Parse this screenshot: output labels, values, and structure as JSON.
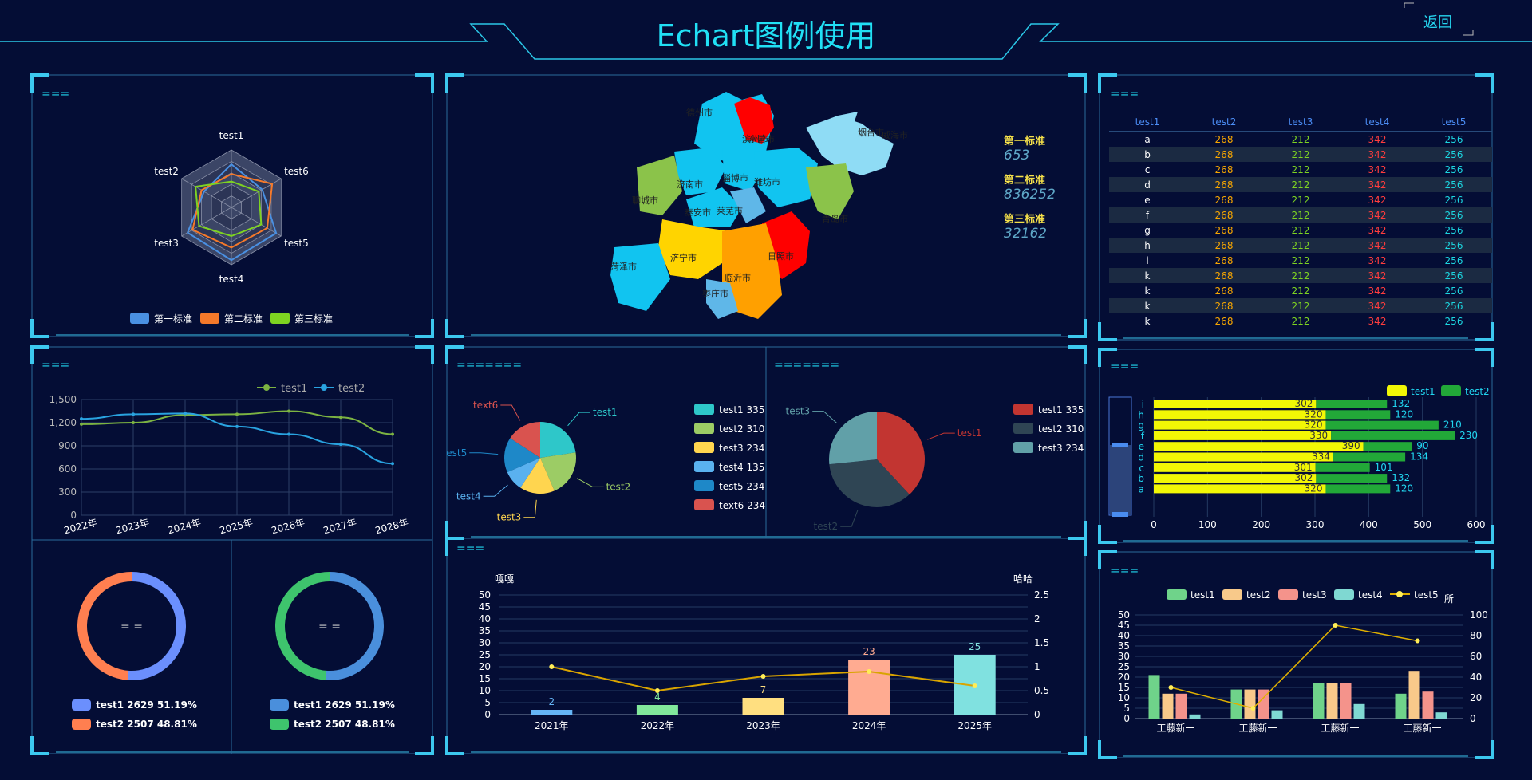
{
  "header": {
    "title": "Echart图例使用",
    "back_label": "返回"
  },
  "panel_titles": {
    "radar": "===",
    "line": "===",
    "map": "",
    "pie": "=======",
    "bar": "===",
    "table": "===",
    "hbar": "===",
    "group": "==="
  },
  "radar": {
    "indicators": [
      "test1",
      "test6",
      "test5",
      "test4",
      "test3",
      "test2"
    ],
    "series": [
      {
        "name": "第一标准",
        "color": "#4a90e2",
        "values": [
          0.75,
          0.62,
          0.9,
          0.92,
          0.88,
          0.55
        ]
      },
      {
        "name": "第二标准",
        "color": "#f5792a",
        "values": [
          0.58,
          0.82,
          0.72,
          0.7,
          0.78,
          0.6
        ]
      },
      {
        "name": "第三标准",
        "color": "#7ed321",
        "values": [
          0.45,
          0.55,
          0.6,
          0.5,
          0.65,
          0.72
        ]
      }
    ]
  },
  "line_chart": {
    "type": "line",
    "categories": [
      "2022年",
      "2023年",
      "2024年",
      "2025年",
      "2026年",
      "2027年",
      "2028年"
    ],
    "ylim": [
      0,
      1500
    ],
    "yticks": [
      "0",
      "300",
      "600",
      "900",
      "1,200",
      "1,500"
    ],
    "series": [
      {
        "name": "test1",
        "color": "#7cb342",
        "values": [
          1180,
          1200,
          1300,
          1310,
          1350,
          1270,
          1050
        ]
      },
      {
        "name": "test2",
        "color": "#29a3e0",
        "values": [
          1250,
          1310,
          1320,
          1150,
          1050,
          920,
          670
        ]
      }
    ]
  },
  "donuts": [
    {
      "center": "= =",
      "items": [
        {
          "name": "test1",
          "value": "2629",
          "pct": "51.19%",
          "color": "#6b8ffd"
        },
        {
          "name": "test2",
          "value": "2507",
          "pct": "48.81%",
          "color": "#ff7f50"
        }
      ]
    },
    {
      "center": "= =",
      "items": [
        {
          "name": "test1",
          "value": "2629",
          "pct": "51.19%",
          "color": "#4a8fdc"
        },
        {
          "name": "test2",
          "value": "2507",
          "pct": "48.81%",
          "color": "#3ec46d"
        }
      ]
    }
  ],
  "map": {
    "cities": [
      "滨州市",
      "东营市",
      "烟台市",
      "威海市",
      "聊城市",
      "济南市",
      "淄博市",
      "潍坊市",
      "青岛市",
      "泰安市",
      "莱芜市",
      "日照市",
      "济宁市",
      "临沂市",
      "枣庄市",
      "菏泽市",
      "德州市"
    ],
    "legend": [
      {
        "label": "第一标准",
        "value": "653"
      },
      {
        "label": "第二标准",
        "value": "836252"
      },
      {
        "label": "第三标准",
        "value": "32162"
      }
    ]
  },
  "pie1": {
    "type": "pie",
    "slices": [
      {
        "name": "test1",
        "value": 335,
        "color": "#2ec7c9"
      },
      {
        "name": "test2",
        "value": 310,
        "color": "#9ccc65"
      },
      {
        "name": "test3",
        "value": 234,
        "color": "#ffd54f"
      },
      {
        "name": "test4",
        "value": 135,
        "color": "#5ab1ef"
      },
      {
        "name": "test5",
        "value": 234,
        "color": "#1e88c8"
      },
      {
        "name": "text6",
        "value": 234,
        "color": "#d9534f"
      }
    ],
    "legend": [
      "test1 335",
      "test2 310",
      "test3 234",
      "test4 135",
      "test5 234",
      "text6 234"
    ]
  },
  "pie2": {
    "type": "pie",
    "slices": [
      {
        "name": "test1",
        "value": 335,
        "color": "#c23531"
      },
      {
        "name": "test2",
        "value": 310,
        "color": "#2f4554"
      },
      {
        "name": "test3",
        "value": 234,
        "color": "#61a0a8"
      }
    ],
    "legend": [
      "test1 335",
      "test2 310",
      "test3 234"
    ]
  },
  "bar_line": {
    "type": "bar",
    "left_label": "嘎嘎",
    "right_label": "哈哈",
    "categories": [
      "2021年",
      "2022年",
      "2023年",
      "2024年",
      "2025年"
    ],
    "bars": [
      2,
      4,
      7,
      23,
      25
    ],
    "bar_labels": [
      "2",
      "4",
      "7",
      "23",
      "25"
    ],
    "bar_colors": [
      "#65b5f6",
      "#81e89b",
      "#ffdf80",
      "#ffab91",
      "#80e1e0"
    ],
    "line": [
      1,
      0.5,
      0.8,
      0.9,
      0.6
    ],
    "ylim_left": [
      0,
      50
    ],
    "ylim_right": [
      0,
      2.5
    ],
    "yticks_left": [
      "0",
      "5",
      "10",
      "15",
      "20",
      "25",
      "30",
      "35",
      "40",
      "45",
      "50"
    ],
    "yticks_right": [
      "0",
      "0.5",
      "1",
      "1.5",
      "2",
      "2.5"
    ]
  },
  "table": {
    "headers": [
      "test1",
      "test2",
      "test3",
      "test4",
      "test5"
    ],
    "rows": [
      [
        "a",
        "268",
        "212",
        "342",
        "256"
      ],
      [
        "b",
        "268",
        "212",
        "342",
        "256"
      ],
      [
        "c",
        "268",
        "212",
        "342",
        "256"
      ],
      [
        "d",
        "268",
        "212",
        "342",
        "256"
      ],
      [
        "e",
        "268",
        "212",
        "342",
        "256"
      ],
      [
        "f",
        "268",
        "212",
        "342",
        "256"
      ],
      [
        "g",
        "268",
        "212",
        "342",
        "256"
      ],
      [
        "h",
        "268",
        "212",
        "342",
        "256"
      ],
      [
        "i",
        "268",
        "212",
        "342",
        "256"
      ],
      [
        "k",
        "268",
        "212",
        "342",
        "256"
      ],
      [
        "k",
        "268",
        "212",
        "342",
        "256"
      ],
      [
        "k",
        "268",
        "212",
        "342",
        "256"
      ],
      [
        "k",
        "268",
        "212",
        "342",
        "256"
      ]
    ]
  },
  "hbar": {
    "type": "bar",
    "categories": [
      "i",
      "h",
      "g",
      "f",
      "e",
      "d",
      "c",
      "b",
      "a"
    ],
    "series": [
      {
        "name": "test1",
        "color": "#f2f705",
        "values": [
          302,
          320,
          320,
          330,
          390,
          334,
          301,
          302,
          320
        ]
      },
      {
        "name": "test2",
        "color": "#22a838",
        "values": [
          132,
          120,
          210,
          230,
          90,
          134,
          101,
          132,
          120
        ]
      }
    ],
    "xlim": [
      0,
      600
    ],
    "xticks": [
      "0",
      "100",
      "200",
      "300",
      "400",
      "500",
      "600"
    ]
  },
  "group_bar": {
    "type": "bar",
    "right_label": "所",
    "categories": [
      "工藤新一",
      "工藤新一",
      "工藤新一",
      "工藤新一"
    ],
    "series": [
      {
        "name": "test1",
        "color": "#6fd38a",
        "values": [
          21,
          14,
          17,
          12
        ]
      },
      {
        "name": "test2",
        "color": "#f8c98a",
        "values": [
          12,
          14,
          17,
          23
        ]
      },
      {
        "name": "test3",
        "color": "#f4938b",
        "values": [
          12,
          14,
          17,
          13
        ]
      },
      {
        "name": "test4",
        "color": "#7fd8d2",
        "values": [
          2,
          4,
          7,
          3
        ]
      }
    ],
    "line": {
      "name": "test5",
      "color": "#e0b000",
      "values": [
        30,
        10,
        90,
        75
      ]
    },
    "ylim_left": [
      0,
      50
    ],
    "ylim_right": [
      0,
      100
    ],
    "yticks_left": [
      "0",
      "5",
      "10",
      "15",
      "20",
      "25",
      "30",
      "35",
      "40",
      "45",
      "50"
    ],
    "yticks_right": [
      "0",
      "20",
      "40",
      "60",
      "80",
      "100"
    ]
  }
}
